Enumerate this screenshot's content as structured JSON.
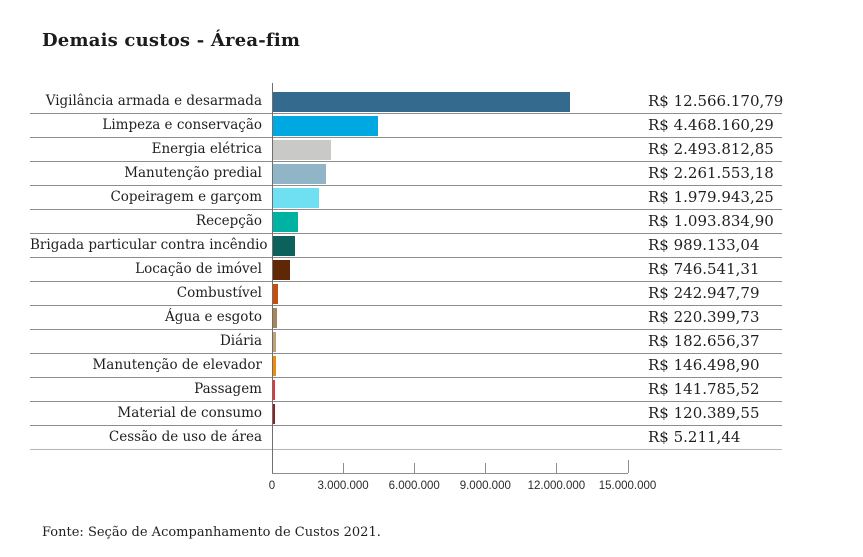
{
  "title": "Demais custos - Área-fim",
  "footer": "Fonte: Seção de Acompanhamento de Custos 2021.",
  "chart_data": {
    "type": "bar",
    "orientation": "horizontal",
    "title": "Demais custos - Área-fim",
    "source": "Fonte: Seção de Acompanhamento de Custos 2021.",
    "categories": [
      "Vigilância armada e desarmada",
      "Limpeza e conservação",
      "Energia elétrica",
      "Manutenção predial",
      "Copeiragem e garçom",
      "Recepção",
      "Brigada particular contra incêndio",
      "Locação de imóvel",
      "Combustível",
      "Água e esgoto",
      "Diária",
      "Manutenção de elevador",
      "Passagem",
      "Material de consumo",
      "Cessão de uso de área"
    ],
    "values": [
      12566170.79,
      4468160.29,
      2493812.85,
      2261553.18,
      1979943.25,
      1093834.9,
      989133.04,
      746541.31,
      242947.79,
      220399.73,
      182656.37,
      146498.9,
      141785.52,
      120389.55,
      5211.44
    ],
    "value_labels": [
      "R$ 12.566.170,79",
      "R$ 4.468.160,29",
      "R$ 2.493.812,85",
      "R$ 2.261.553,18",
      "R$ 1.979.943,25",
      "R$ 1.093.834,90",
      "R$ 989.133,04",
      "R$ 746.541,31",
      "R$ 242.947,79",
      "R$ 220.399,73",
      "R$ 182.656,37",
      "R$ 146.498,90",
      "R$ 141.785,52",
      "R$ 120.389,55",
      "R$ 5.211,44"
    ],
    "bar_colors": [
      "#336a8d",
      "#00a8e1",
      "#c9c9c7",
      "#8fb5c6",
      "#6fdff2",
      "#00b2a2",
      "#0c615a",
      "#5f2706",
      "#c64f10",
      "#a9855c",
      "#c2a077",
      "#f18b0c",
      "#ef3138",
      "#8c2025",
      "transparent"
    ],
    "xlim": [
      0,
      15000000
    ],
    "x_ticks": [
      0,
      3000000,
      6000000,
      9000000,
      12000000,
      15000000
    ],
    "x_tick_labels": [
      "0",
      "3.000.000",
      "6.000.000",
      "9.000.000",
      "12.000.000",
      "15.000.000"
    ],
    "grid": "row-separator-lines",
    "legend": "none"
  },
  "colors": {
    "separator_line": "#8d8d8d",
    "axis_line": "#6f6f6f",
    "text": "#1f1f1f"
  }
}
